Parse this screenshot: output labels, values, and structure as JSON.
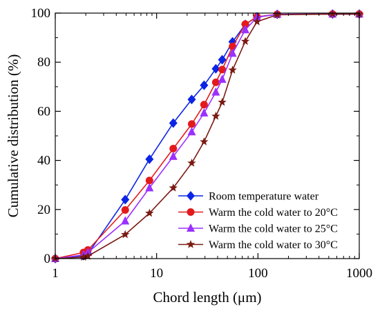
{
  "chart_data": {
    "type": "line",
    "xlabel": "Chord length  (μm)",
    "ylabel": "Cumulative  distribution  (%)",
    "xscale": "log",
    "xlim": [
      1,
      1000
    ],
    "ylim": [
      0,
      100
    ],
    "xticks": [
      1,
      10,
      100,
      1000
    ],
    "xtick_labels": [
      "1",
      "10",
      "100",
      "1000"
    ],
    "yticks": [
      0,
      20,
      40,
      60,
      80,
      100
    ],
    "ytick_labels": [
      "0",
      "20",
      "40",
      "60",
      "80",
      "100"
    ],
    "grid": false,
    "legend_position": "bottom-right",
    "series": [
      {
        "name": "Room temperature water",
        "color": "#0b24e6",
        "marker": "diamond",
        "x": [
          1.0,
          1.9,
          2.1,
          4.9,
          8.5,
          14.6,
          22.2,
          29.4,
          38.4,
          44.4,
          56.2,
          75.0,
          98.0,
          155,
          545,
          1000
        ],
        "y": [
          0,
          1.2,
          2.0,
          24.0,
          40.5,
          55.2,
          64.8,
          70.6,
          77.3,
          81.0,
          88.3,
          95.4,
          98.5,
          99.5,
          99.6,
          99.6
        ]
      },
      {
        "name": "Warm the cold water to 20°C",
        "color": "#e31a1c",
        "marker": "circle",
        "x": [
          1.0,
          1.9,
          2.1,
          4.9,
          8.5,
          14.6,
          22.2,
          29.4,
          38.4,
          44.4,
          56.2,
          75.0,
          98.0,
          155,
          545,
          1000
        ],
        "y": [
          0,
          2.5,
          3.5,
          19.8,
          31.8,
          44.8,
          54.8,
          62.7,
          71.8,
          77.0,
          86.4,
          95.5,
          98.5,
          99.5,
          99.6,
          99.6
        ]
      },
      {
        "name": "Warm the cold water to 25°C",
        "color": "#9b30ff",
        "marker": "triangle",
        "x": [
          1.0,
          1.9,
          2.1,
          4.9,
          8.5,
          14.6,
          22.2,
          29.4,
          38.4,
          44.4,
          56.2,
          75.0,
          98.0,
          155,
          545,
          1000
        ],
        "y": [
          0,
          1.5,
          2.5,
          15.3,
          28.8,
          41.6,
          51.6,
          59.3,
          67.8,
          73.0,
          83.6,
          93.2,
          98.3,
          99.5,
          99.6,
          99.6
        ]
      },
      {
        "name": "Warm the cold water to 30°C",
        "color": "#7a1a12",
        "marker": "star",
        "x": [
          1.0,
          1.9,
          2.1,
          4.9,
          8.5,
          14.6,
          22.2,
          29.4,
          38.4,
          44.4,
          56.2,
          75.0,
          98.0,
          155,
          545,
          1000
        ],
        "y": [
          0,
          0.6,
          1.0,
          9.8,
          18.5,
          28.8,
          38.9,
          47.6,
          58.0,
          63.7,
          76.8,
          88.5,
          96.5,
          99.3,
          99.6,
          99.6
        ]
      }
    ]
  }
}
